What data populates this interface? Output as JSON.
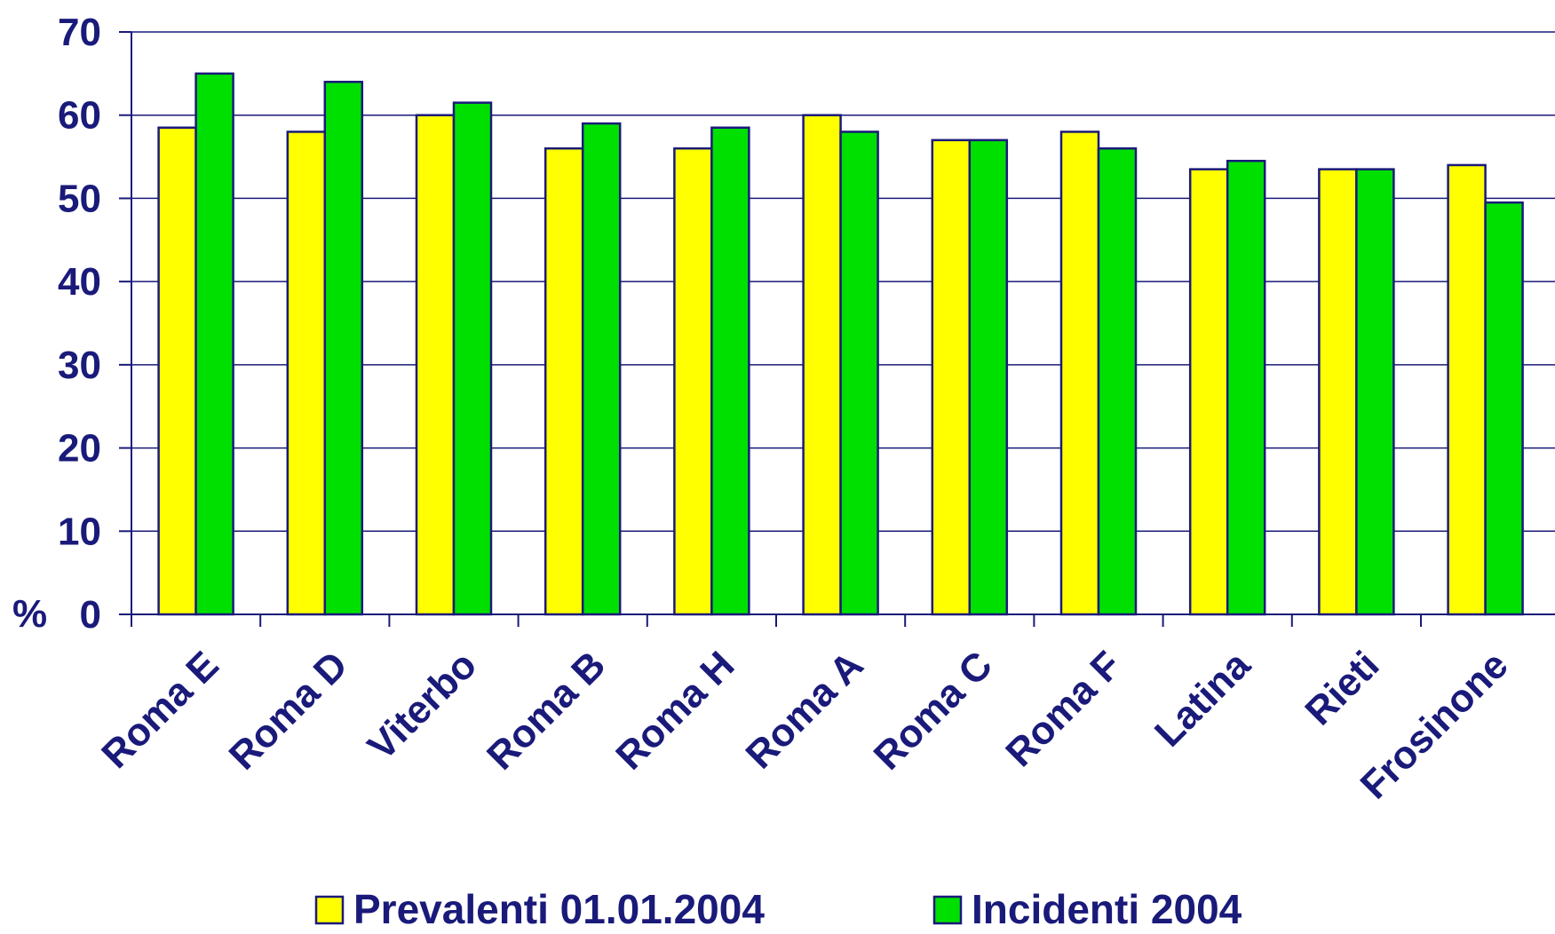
{
  "chart_data": {
    "type": "bar",
    "title": "",
    "xlabel": "",
    "ylabel": "%",
    "ylim": [
      0,
      70
    ],
    "yticks": [
      "0",
      "10",
      "20",
      "30",
      "40",
      "50",
      "60",
      "70"
    ],
    "grid": true,
    "legend_position": "bottom",
    "categories": [
      "Roma E",
      "Roma D",
      "Viterbo",
      "Roma B",
      "Roma H",
      "Roma A",
      "Roma C",
      "Roma F",
      "Latina",
      "Rieti",
      "Frosinone"
    ],
    "series": [
      {
        "name": "Prevalenti 01.01.2004",
        "color": "#ffff00",
        "values": [
          58.5,
          58.0,
          60.0,
          56.0,
          56.0,
          60.0,
          57.0,
          58.0,
          53.5,
          53.5,
          54.0
        ]
      },
      {
        "name": "Incidenti 2004",
        "color": "#00e000",
        "values": [
          65.0,
          64.0,
          61.5,
          59.0,
          58.5,
          58.0,
          57.0,
          56.0,
          54.5,
          53.5,
          49.5
        ]
      }
    ]
  },
  "colors": {
    "axis": "#1a1a7a",
    "gridline": "#1a1a7a",
    "bar_outline": "#1a1a7a"
  }
}
